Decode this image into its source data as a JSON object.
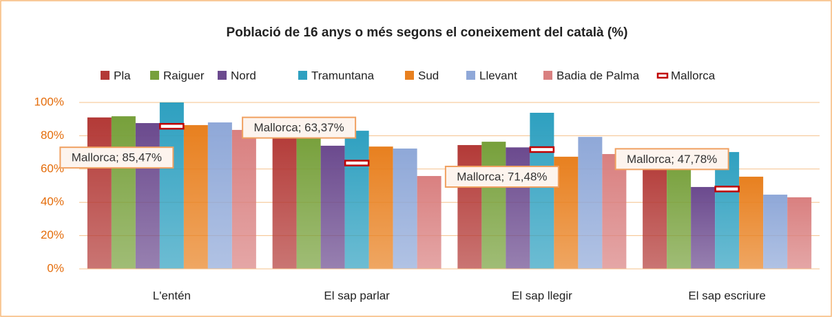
{
  "chart_data": {
    "type": "bar",
    "title": "Població de 16 anys o més segons el coneixement del català (%)",
    "categories": [
      "L'entén",
      "El sap parlar",
      "El sap llegir",
      "El sap escriure"
    ],
    "series": [
      {
        "name": "Pla",
        "color": "#b33a37",
        "values": [
          91,
          83,
          74.4,
          67.8
        ]
      },
      {
        "name": "Raiguer",
        "color": "#77a03b",
        "values": [
          91.7,
          80.6,
          76.4,
          65.7
        ]
      },
      {
        "name": "Nord",
        "color": "#6b4a8e",
        "values": [
          87.6,
          74,
          73,
          49.2
        ]
      },
      {
        "name": "Tramuntana",
        "color": "#2ea0c0",
        "values": [
          100,
          83,
          93.8,
          70.2
        ]
      },
      {
        "name": "Sud",
        "color": "#e8801f",
        "values": [
          86.4,
          73.5,
          67.4,
          55.4
        ]
      },
      {
        "name": "Llevant",
        "color": "#8fa8d8",
        "values": [
          88,
          72.3,
          79.3,
          44.6
        ]
      },
      {
        "name": "Badia de Palma",
        "color": "#d98080",
        "values": [
          83.5,
          55.8,
          69,
          43
        ]
      },
      {
        "name": "Mallorca",
        "color": "#c00000",
        "values": [
          85.47,
          63.37,
          71.48,
          47.78
        ],
        "value_labels": [
          "Mallorca; 85,47%",
          "Mallorca; 63,37%",
          "Mallorca; 71,48%",
          "Mallorca; 47,78%"
        ]
      }
    ],
    "ylim": [
      0,
      100
    ],
    "yticks": [
      {
        "value": 0,
        "label": "0%"
      },
      {
        "value": 20,
        "label": "20%"
      },
      {
        "value": 40,
        "label": "40%"
      },
      {
        "value": 60,
        "label": "60%"
      },
      {
        "value": 80,
        "label": "80%"
      },
      {
        "value": 100,
        "label": "100%"
      }
    ],
    "grid": true
  }
}
